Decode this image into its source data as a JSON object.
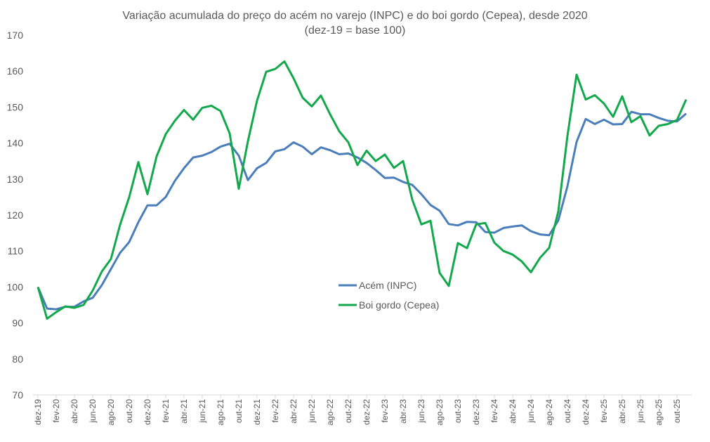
{
  "chart_data": {
    "type": "line",
    "title": "Variação acumulada do preço do acém no varejo (INPC) e do boi gordo (Cepea), desde 2020",
    "subtitle": "(dez-19 = base 100)",
    "xlabel": "",
    "ylabel": "",
    "ylim": [
      70,
      170
    ],
    "yticks": [
      70,
      80,
      90,
      100,
      110,
      120,
      130,
      140,
      150,
      160,
      170
    ],
    "grid": false,
    "legend_position": "center",
    "x": [
      "dez-19",
      "jan-20",
      "fev-20",
      "mar-20",
      "abr-20",
      "mai-20",
      "jun-20",
      "jul-20",
      "ago-20",
      "set-20",
      "out-20",
      "nov-20",
      "dez-20",
      "jan-21",
      "fev-21",
      "mar-21",
      "abr-21",
      "mai-21",
      "jun-21",
      "jul-21",
      "ago-21",
      "set-21",
      "out-21",
      "nov-21",
      "dez-21",
      "jan-22",
      "fev-22",
      "mar-22",
      "abr-22",
      "mai-22",
      "jun-22",
      "jul-22",
      "ago-22",
      "set-22",
      "out-22",
      "nov-22",
      "dez-22",
      "jan-23",
      "fev-23",
      "mar-23",
      "abr-23",
      "mai-23",
      "jun-23",
      "jul-23",
      "ago-23",
      "set-23",
      "out-23",
      "nov-23",
      "dez-23",
      "jan-24",
      "fev-24",
      "mar-24",
      "abr-24",
      "mai-24",
      "jun-24",
      "jul-24",
      "ago-24",
      "set-24",
      "out-24",
      "nov-24",
      "dez-24",
      "jan-25",
      "fev-25",
      "mar-25",
      "abr-25",
      "mai-25",
      "jun-25",
      "jul-25",
      "ago-25",
      "set-25",
      "out-25",
      "nov-25"
    ],
    "xtick_labels": [
      "dez-19",
      "fev-20",
      "abr-20",
      "jun-20",
      "ago-20",
      "out-20",
      "dez-20",
      "fev-21",
      "abr-21",
      "jun-21",
      "ago-21",
      "out-21",
      "dez-21",
      "fev-22",
      "abr-22",
      "jun-22",
      "ago-22",
      "out-22",
      "dez-22",
      "fev-23",
      "abr-23",
      "jun-23",
      "ago-23",
      "out-23",
      "dez-23",
      "fev-24",
      "abr-24",
      "jun-24",
      "ago-24",
      "out-24",
      "dez-24",
      "fev-25",
      "abr-25",
      "jun-25",
      "ago-25",
      "out-25"
    ],
    "series": [
      {
        "name": "Acém (INPC)",
        "color": "#4a7ebb",
        "values": [
          100,
          94,
          93.8,
          94.5,
          94.5,
          96,
          97,
          100.5,
          105,
          109.5,
          112.5,
          118,
          122.7,
          122.7,
          125,
          129.5,
          133,
          136,
          136.5,
          137.5,
          139,
          139.8,
          136.5,
          129.7,
          133,
          134.5,
          137.7,
          138.3,
          140.2,
          139,
          136.9,
          138.8,
          138,
          136.9,
          137.1,
          136,
          134.5,
          132.5,
          130.3,
          130.4,
          129.2,
          128.4,
          125.8,
          122.8,
          121.2,
          117.5,
          117.1,
          118.1,
          118,
          115.3,
          115.1,
          116.4,
          116.8,
          117.1,
          115.5,
          114.6,
          114.4,
          118.5,
          128,
          140.3,
          146.7,
          145.3,
          146.5,
          145.2,
          145.3,
          148.7,
          148,
          148,
          147,
          146.2,
          146,
          148.2
        ]
      },
      {
        "name": "Boi gordo (Cepea)",
        "color": "#12a84b",
        "values": [
          100,
          91.2,
          93,
          94.6,
          94.2,
          95,
          99,
          104.3,
          107.8,
          117.3,
          125,
          134.7,
          125.8,
          136.3,
          142.5,
          146.2,
          149.2,
          146.5,
          149.8,
          150.4,
          148.9,
          142.7,
          127.3,
          140.5,
          151.8,
          159.8,
          160.6,
          162.7,
          158,
          152.6,
          150.2,
          153.2,
          148,
          143.3,
          140.2,
          133.9,
          137.9,
          135,
          136.8,
          133.1,
          135,
          124.3,
          117.4,
          118.4,
          103.9,
          100.3,
          112.2,
          110.8,
          117.4,
          117.8,
          112.3,
          110,
          109,
          107.1,
          104.1,
          108.1,
          110.9,
          121,
          142,
          159,
          152.1,
          153.3,
          151,
          147.3,
          153,
          145.8,
          147.5,
          142.1,
          144.8,
          145.3,
          146.4,
          152.1
        ]
      }
    ]
  }
}
